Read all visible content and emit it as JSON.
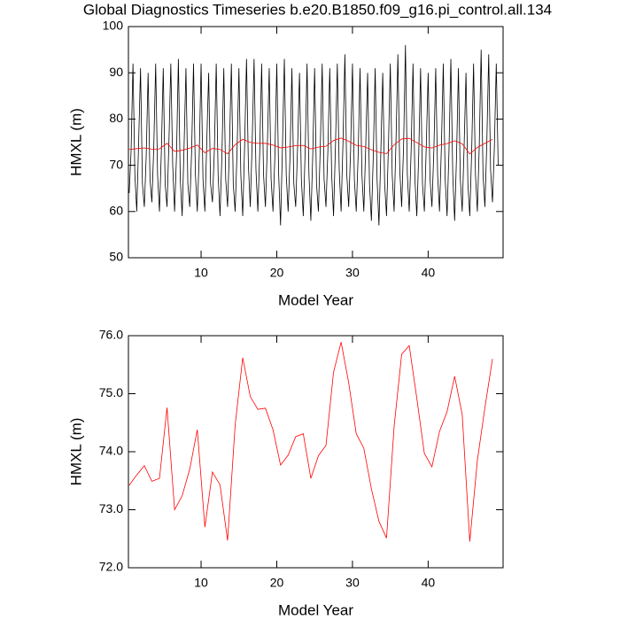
{
  "chart_data": [
    {
      "type": "line",
      "title": "Global Diagnostics Timeseries b.e20.B1850.f09_g16.pi_control.all.134",
      "xlabel": "Model Year",
      "ylabel": "HMXL (m)",
      "xlim": [
        0.4,
        49.9
      ],
      "xticks": [
        10,
        20,
        30,
        40
      ],
      "ylim": [
        50,
        100
      ],
      "yticks": [
        50,
        60,
        70,
        80,
        90,
        100
      ],
      "series": [
        {
          "color": "#000000",
          "x": [
            0.5,
            0.75,
            1,
            1.25,
            1.5,
            1.75,
            2,
            2.25,
            2.5,
            2.75,
            3,
            3.25,
            3.5,
            3.75,
            4,
            4.25,
            4.5,
            4.75,
            5,
            5.25,
            5.5,
            5.75,
            6,
            6.25,
            6.5,
            6.75,
            7,
            7.25,
            7.5,
            7.75,
            8,
            8.25,
            8.5,
            8.75,
            9,
            9.25,
            9.5,
            9.75,
            10,
            10.25,
            10.5,
            10.75,
            11,
            11.25,
            11.5,
            11.75,
            12,
            12.25,
            12.5,
            12.75,
            13,
            13.25,
            13.5,
            13.75,
            14,
            14.25,
            14.5,
            14.75,
            15,
            15.25,
            15.5,
            15.75,
            16,
            16.25,
            16.5,
            16.75,
            17,
            17.25,
            17.5,
            17.75,
            18,
            18.25,
            18.5,
            18.75,
            19,
            19.25,
            19.5,
            19.75,
            20,
            20.25,
            20.5,
            20.75,
            21,
            21.25,
            21.5,
            21.75,
            22,
            22.25,
            22.5,
            22.75,
            23,
            23.25,
            23.5,
            23.75,
            24,
            24.25,
            24.5,
            24.75,
            25,
            25.25,
            25.5,
            25.75,
            26,
            26.25,
            26.5,
            26.75,
            27,
            27.25,
            27.5,
            27.75,
            28,
            28.25,
            28.5,
            28.75,
            29,
            29.25,
            29.5,
            29.75,
            30,
            30.25,
            30.5,
            30.75,
            31,
            31.25,
            31.5,
            31.75,
            32,
            32.25,
            32.5,
            32.75,
            33,
            33.25,
            33.5,
            33.75,
            34,
            34.25,
            34.5,
            34.75,
            35,
            35.25,
            35.5,
            35.75,
            36,
            36.25,
            36.5,
            36.75,
            37,
            37.25,
            37.5,
            37.75,
            38,
            38.25,
            38.5,
            38.75,
            39,
            39.25,
            39.5,
            39.75,
            40,
            40.25,
            40.5,
            40.75,
            41,
            41.25,
            41.5,
            41.75,
            42,
            42.25,
            42.5,
            42.75,
            43,
            43.25,
            43.5,
            43.75,
            44,
            44.25,
            44.5,
            44.75,
            45,
            45.25,
            45.5,
            45.75,
            46,
            46.25,
            46.5,
            46.75,
            47,
            47.25,
            47.5,
            47.75,
            48,
            48.25,
            48.5,
            48.75,
            49,
            49.25
          ],
          "values": [
            64,
            73,
            92,
            68,
            60,
            75,
            91,
            66,
            61,
            72,
            90,
            67,
            62,
            74,
            92,
            68,
            60,
            73,
            91,
            66,
            61,
            75,
            92,
            70,
            60,
            72,
            93,
            67,
            59,
            74,
            91,
            66,
            61,
            73,
            92,
            68,
            60,
            72,
            92,
            67,
            60,
            75,
            90,
            66,
            62,
            73,
            92,
            68,
            59,
            72,
            91,
            67,
            61,
            74,
            92,
            66,
            60,
            73,
            91,
            68,
            59,
            74,
            93,
            70,
            61,
            75,
            93,
            69,
            60,
            73,
            92,
            68,
            61,
            74,
            91,
            67,
            60,
            72,
            92,
            68,
            57,
            74,
            93,
            68,
            60,
            72,
            91,
            66,
            61,
            74,
            90,
            67,
            59,
            73,
            92,
            68,
            58,
            72,
            91,
            66,
            60,
            74,
            92,
            67,
            61,
            73,
            91,
            68,
            59,
            74,
            92,
            69,
            60,
            75,
            94,
            68,
            61,
            73,
            92,
            67,
            60,
            72,
            91,
            68,
            60,
            74,
            90,
            66,
            58,
            72,
            91,
            67,
            57,
            73,
            90,
            66,
            59,
            74,
            92,
            68,
            60,
            75,
            94,
            69,
            61,
            74,
            96,
            68,
            60,
            73,
            92,
            67,
            59,
            72,
            91,
            66,
            60,
            74,
            90,
            67,
            61,
            73,
            91,
            68,
            60,
            74,
            92,
            67,
            59,
            73,
            93,
            68,
            58,
            72,
            91,
            67,
            60,
            74,
            90,
            66,
            59,
            73,
            92,
            68,
            60,
            74,
            95,
            68,
            61,
            75,
            94,
            69,
            62,
            74,
            92,
            70
          ]
        },
        {
          "color": "#ff0000",
          "x": [
            0.5,
            1.5,
            2.5,
            3.5,
            4.5,
            5.5,
            6.5,
            7.5,
            8.5,
            9.5,
            10.5,
            11.5,
            12.5,
            13.5,
            14.5,
            15.5,
            16.5,
            17.5,
            18.5,
            19.5,
            20.5,
            21.5,
            22.5,
            23.5,
            24.5,
            25.5,
            26.5,
            27.5,
            28.5,
            29.5,
            30.5,
            31.5,
            32.5,
            33.5,
            34.5,
            35.5,
            36.5,
            37.5,
            38.5,
            39.5,
            40.5,
            41.5,
            42.5,
            43.5,
            44.5,
            45.5,
            46.5,
            47.5,
            48.5
          ],
          "values": [
            73.42,
            73.6,
            73.76,
            73.49,
            73.54,
            74.76,
            73.0,
            73.24,
            73.7,
            74.38,
            72.7,
            73.65,
            73.43,
            72.47,
            74.46,
            75.62,
            74.95,
            74.73,
            74.75,
            74.38,
            73.77,
            73.94,
            74.26,
            74.31,
            73.54,
            73.93,
            74.11,
            75.37,
            75.89,
            75.19,
            74.31,
            74.06,
            73.36,
            72.8,
            72.51,
            74.43,
            75.68,
            75.83,
            74.92,
            73.97,
            73.74,
            74.35,
            74.69,
            75.3,
            74.64,
            72.45,
            73.85,
            74.76,
            75.6
          ]
        }
      ]
    },
    {
      "type": "line",
      "xlabel": "Model Year",
      "ylabel": "HMXL (m)",
      "xlim": [
        0.4,
        49.9
      ],
      "xticks": [
        10,
        20,
        30,
        40
      ],
      "ylim": [
        72,
        76
      ],
      "yticks": [
        {
          "value": 72,
          "label": "72.0"
        },
        {
          "value": 73,
          "label": "73.0"
        },
        {
          "value": 74,
          "label": "74.0"
        },
        {
          "value": 75,
          "label": "75.0"
        },
        {
          "value": 76,
          "label": "76.0"
        }
      ],
      "series": [
        {
          "color": "#ff0000",
          "x": [
            0.5,
            1.5,
            2.5,
            3.5,
            4.5,
            5.5,
            6.5,
            7.5,
            8.5,
            9.5,
            10.5,
            11.5,
            12.5,
            13.5,
            14.5,
            15.5,
            16.5,
            17.5,
            18.5,
            19.5,
            20.5,
            21.5,
            22.5,
            23.5,
            24.5,
            25.5,
            26.5,
            27.5,
            28.5,
            29.5,
            30.5,
            31.5,
            32.5,
            33.5,
            34.5,
            35.5,
            36.5,
            37.5,
            38.5,
            39.5,
            40.5,
            41.5,
            42.5,
            43.5,
            44.5,
            45.5,
            46.5,
            47.5,
            48.5
          ],
          "values": [
            73.42,
            73.6,
            73.76,
            73.49,
            73.54,
            74.76,
            73.0,
            73.24,
            73.7,
            74.38,
            72.7,
            73.65,
            73.43,
            72.47,
            74.46,
            75.62,
            74.95,
            74.73,
            74.75,
            74.38,
            73.77,
            73.94,
            74.26,
            74.31,
            73.54,
            73.93,
            74.11,
            75.37,
            75.89,
            75.19,
            74.31,
            74.06,
            73.36,
            72.8,
            72.51,
            74.43,
            75.68,
            75.83,
            74.92,
            73.97,
            73.74,
            74.35,
            74.69,
            75.3,
            74.64,
            72.45,
            73.85,
            74.76,
            75.6
          ]
        }
      ]
    }
  ]
}
